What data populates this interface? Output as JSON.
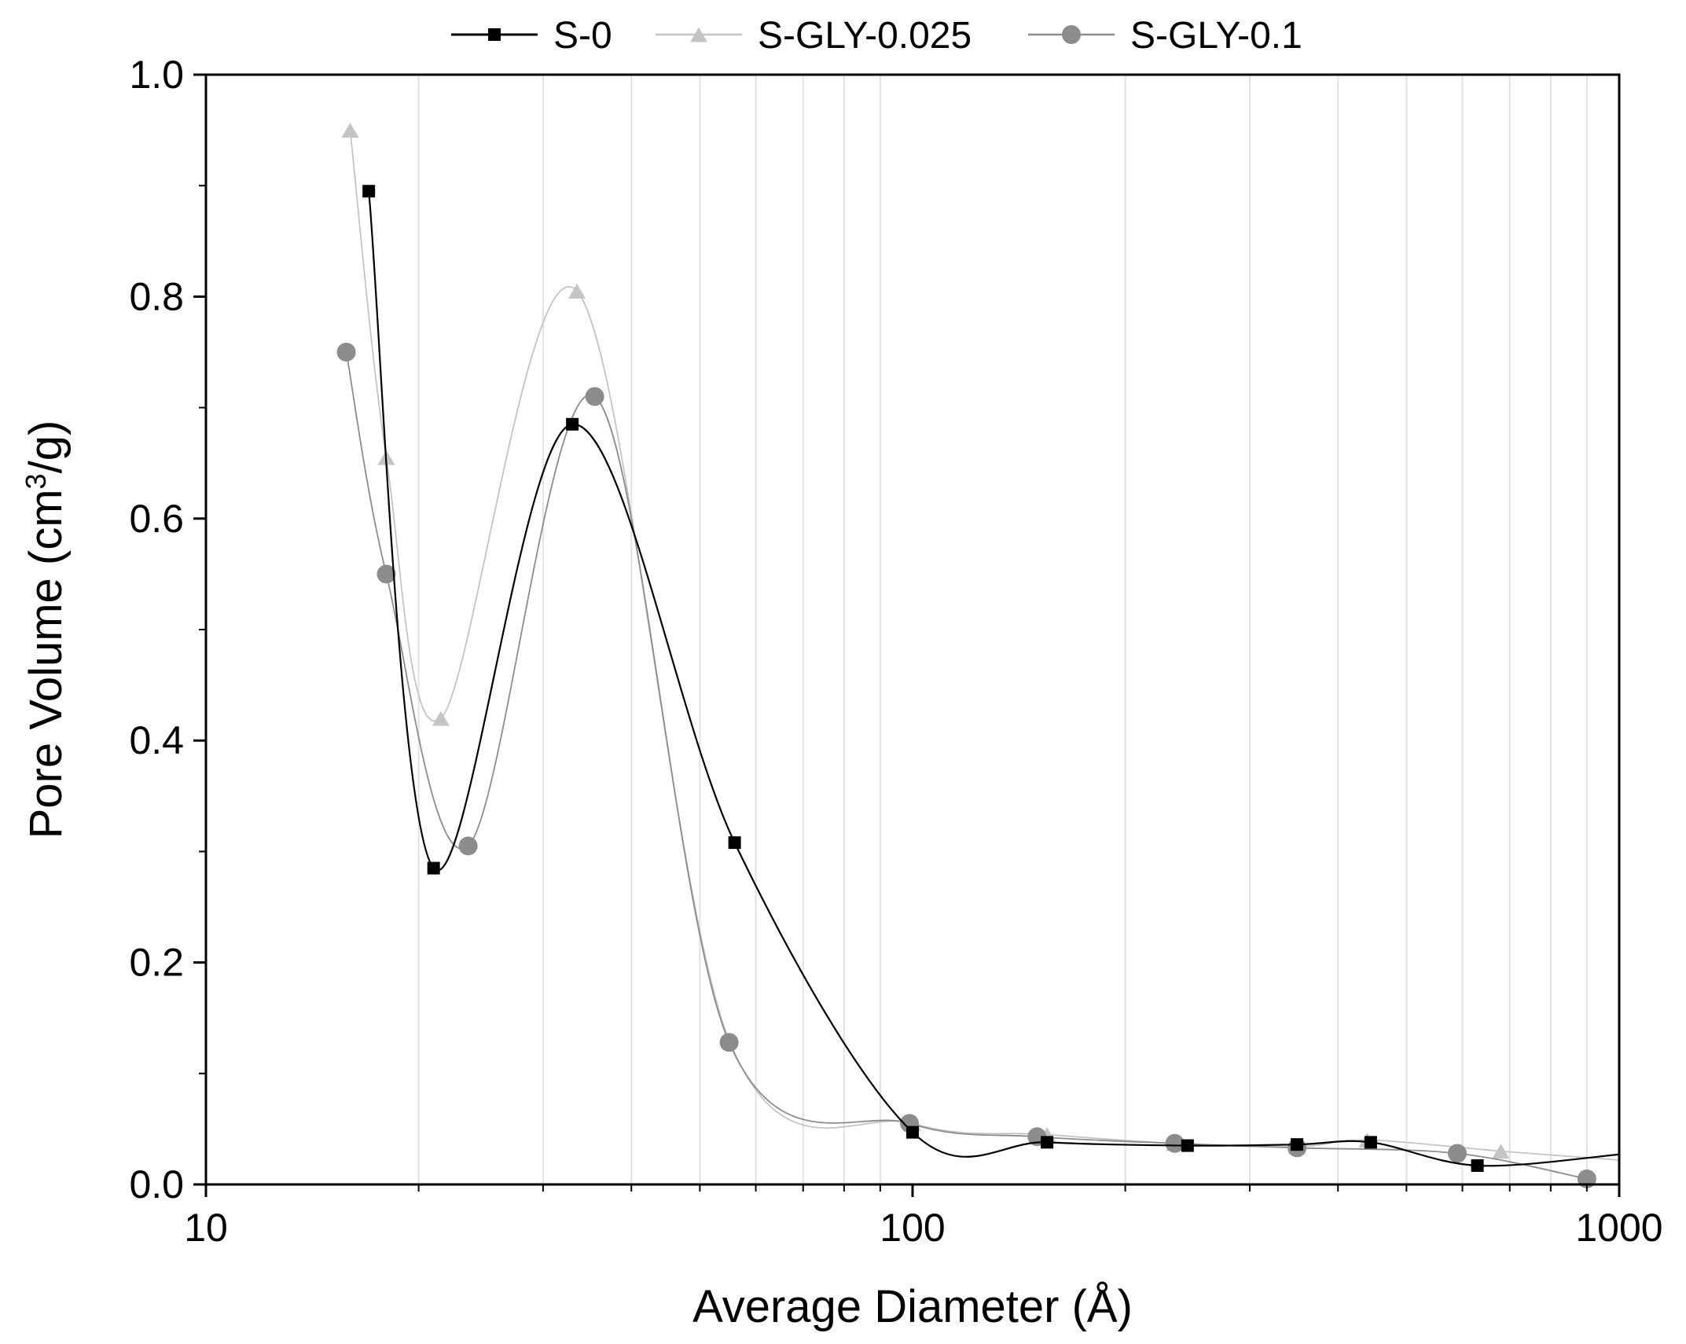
{
  "chart_data": {
    "type": "line",
    "title": "",
    "xlabel": "Average Diameter (Å)",
    "ylabel_main": "Pore Volume (cm",
    "ylabel_sup": "3",
    "ylabel_tail": "/g)",
    "xscale": "log",
    "xlim": [
      10,
      1000
    ],
    "ylim": [
      0.0,
      1.0
    ],
    "x_tick_labels": [
      "10",
      "100",
      "1000"
    ],
    "y_tick_labels": [
      "0.0",
      "0.2",
      "0.4",
      "0.6",
      "0.8",
      "1.0"
    ],
    "grid": "vertical minor gridlines on log x-axis",
    "legend_position": "top",
    "series": [
      {
        "name": "S-0",
        "marker": "square",
        "color": "#000000",
        "x": [
          17,
          21,
          33,
          56,
          100,
          155,
          245,
          350,
          445,
          630
        ],
        "y": [
          0.895,
          0.285,
          0.685,
          0.308,
          0.047,
          0.038,
          0.035,
          0.036,
          0.038,
          0.017
        ],
        "curve_tail_x": [
          1000
        ],
        "curve_tail_y": [
          0.027
        ]
      },
      {
        "name": "S-GLY-0.025",
        "marker": "triangle",
        "color": "#c4c4c4",
        "x": [
          16,
          18,
          21.5,
          33.5,
          55,
          100,
          155,
          235,
          350,
          440,
          680
        ],
        "y": [
          0.95,
          0.655,
          0.42,
          0.805,
          0.13,
          0.055,
          0.045,
          0.037,
          0.034,
          0.04,
          0.03
        ],
        "curve_tail_x": [
          1000
        ],
        "curve_tail_y": [
          0.022
        ]
      },
      {
        "name": "S-GLY-0.1",
        "marker": "circle",
        "color": "#8c8c8c",
        "x": [
          15.8,
          18,
          23.5,
          35.5,
          55,
          99,
          150,
          235,
          350,
          590,
          900
        ],
        "y": [
          0.75,
          0.55,
          0.305,
          0.71,
          0.128,
          0.055,
          0.043,
          0.037,
          0.033,
          0.028,
          0.005
        ],
        "curve_tail_x": [],
        "curve_tail_y": []
      }
    ]
  }
}
